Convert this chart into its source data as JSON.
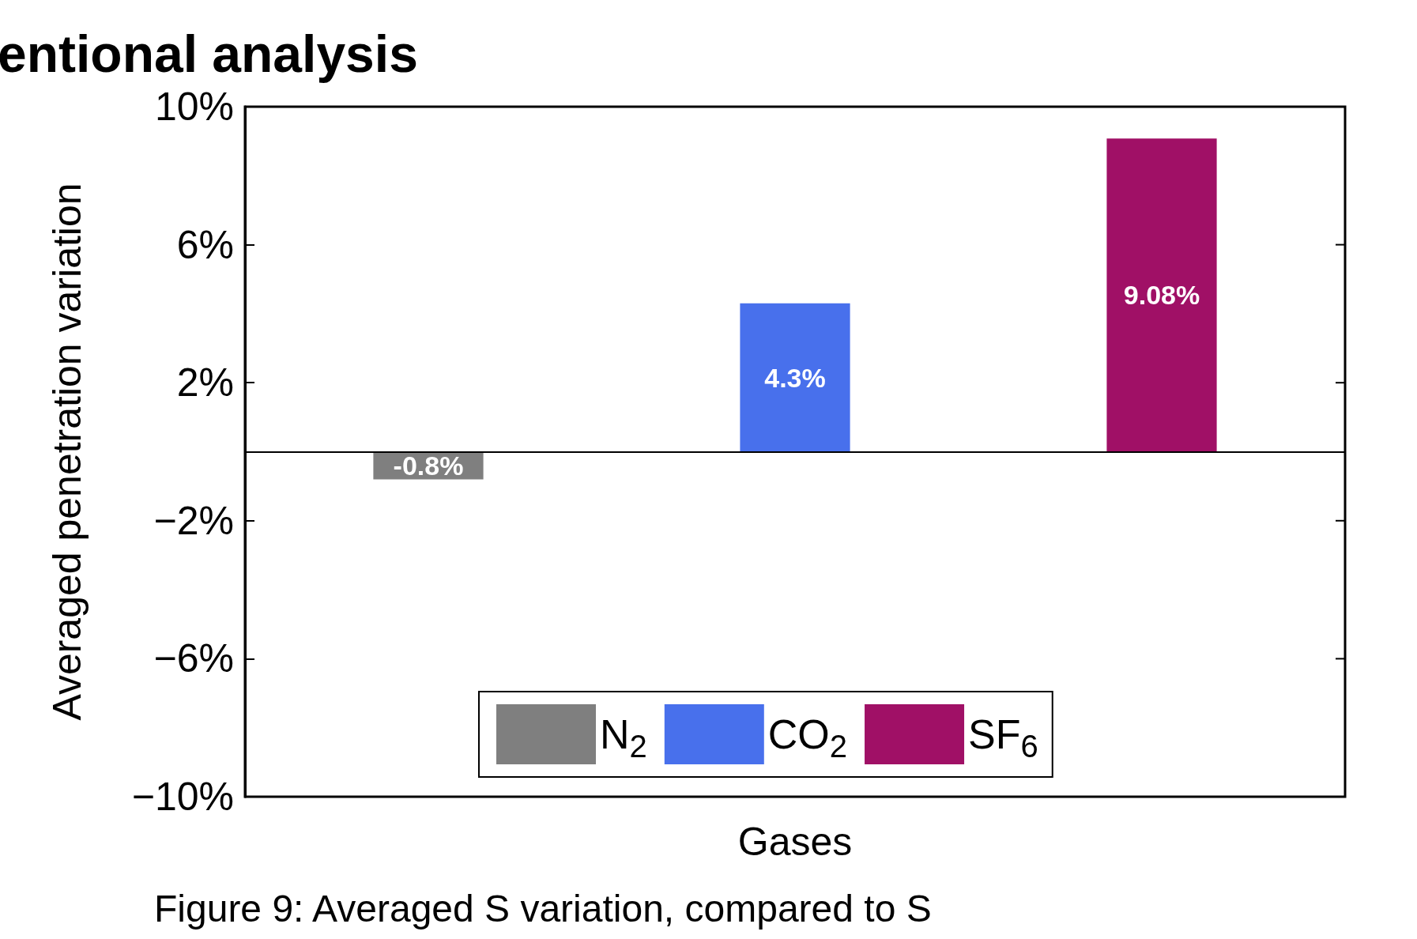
{
  "chart_data": {
    "type": "bar",
    "title": "entional analysis",
    "xlabel": "Gases",
    "ylabel": "Averaged penetration variation",
    "annotations": [
      "Figure 9: Averaged S variation, compared to S"
    ],
    "categories": [
      null,
      null,
      null
    ],
    "series": [
      {
        "name": "N$_{2}$",
        "color": "#7f7f7f",
        "values": [
          -0.8,
          null,
          null
        ],
        "value_labels": [
          "-0.8%",
          null,
          null
        ]
      },
      {
        "name": "CO$_{2}$",
        "color": "#4870ec",
        "values": [
          null,
          4.3,
          null
        ],
        "value_labels": [
          null,
          "4.3%",
          null
        ]
      },
      {
        "name": "SF$_{6}$",
        "color": "#a01066",
        "values": [
          null,
          null,
          9.08
        ],
        "value_labels": [
          null,
          null,
          "9.08%"
        ]
      }
    ],
    "ylim": [
      -10,
      10
    ],
    "yticks": [
      {
        "value": -10,
        "label": "−10%"
      },
      {
        "value": -6,
        "label": "−6%"
      },
      {
        "value": -2,
        "label": "−2%"
      },
      {
        "value": 2,
        "label": "2%"
      },
      {
        "value": 6,
        "label": "6%"
      },
      {
        "value": 10,
        "label": "10%"
      }
    ],
    "ref_lines": [
      {
        "axis": "y",
        "value": 0,
        "color": "#000000"
      }
    ],
    "legend": "bottom",
    "grid": false
  }
}
